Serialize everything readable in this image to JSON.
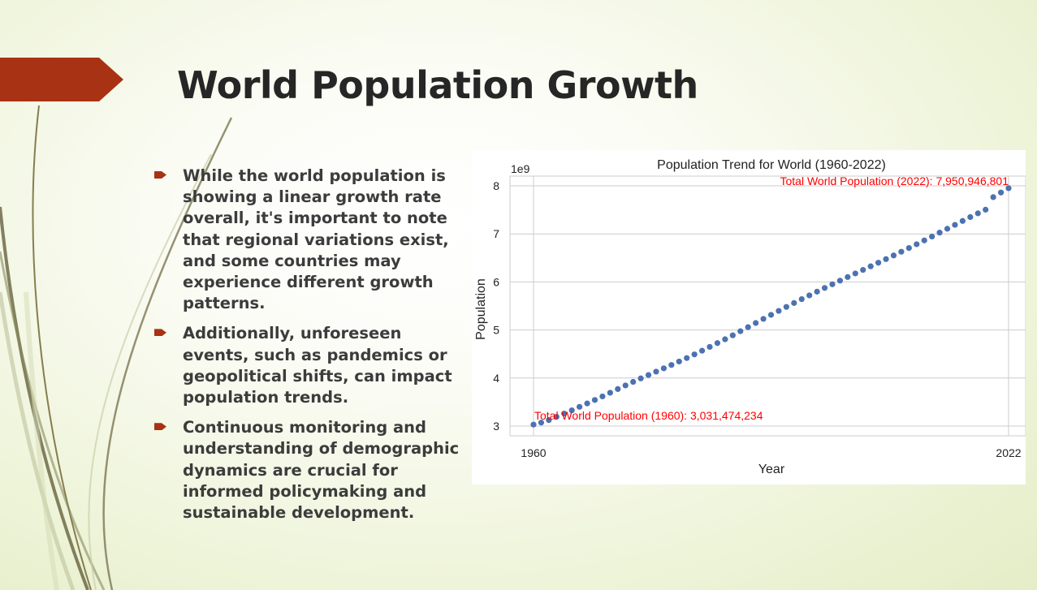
{
  "slide": {
    "title": "World Population Growth",
    "accent_color": "#a83214"
  },
  "bullets": [
    {
      "text": "While the world population is showing a linear growth rate overall, it's important to note that regional variations exist, and some countries may experience different growth patterns."
    },
    {
      "text": "Additionally, unforeseen events, such as pandemics or geopolitical shifts, can impact population trends."
    },
    {
      "text": "Continuous monitoring and understanding of demographic dynamics are crucial for informed policymaking and sustainable development."
    }
  ],
  "chart_data": {
    "type": "scatter",
    "title": "Population Trend for World (1960-2022)",
    "xlabel": "Year",
    "ylabel": "Population",
    "y_offset_label": "1e9",
    "x_ticks": [
      "1960",
      "2022"
    ],
    "y_ticks": [
      "3",
      "4",
      "5",
      "6",
      "7",
      "8"
    ],
    "xlim": [
      1960,
      2022
    ],
    "ylim": [
      3,
      8
    ],
    "grid": true,
    "marker_color": "#4c72b0",
    "annotation_color": "#ff0000",
    "x": [
      1960,
      1961,
      1962,
      1963,
      1964,
      1965,
      1966,
      1967,
      1968,
      1969,
      1970,
      1971,
      1972,
      1973,
      1974,
      1975,
      1976,
      1977,
      1978,
      1979,
      1980,
      1981,
      1982,
      1983,
      1984,
      1985,
      1986,
      1987,
      1988,
      1989,
      1990,
      1991,
      1992,
      1993,
      1994,
      1995,
      1996,
      1997,
      1998,
      1999,
      2000,
      2001,
      2002,
      2003,
      2004,
      2005,
      2006,
      2007,
      2008,
      2009,
      2010,
      2011,
      2012,
      2013,
      2014,
      2015,
      2016,
      2017,
      2018,
      2019,
      2020,
      2021,
      2022
    ],
    "y": [
      3.031,
      3.072,
      3.125,
      3.193,
      3.26,
      3.328,
      3.4,
      3.471,
      3.543,
      3.618,
      3.694,
      3.771,
      3.846,
      3.92,
      3.992,
      4.063,
      4.133,
      4.202,
      4.272,
      4.344,
      4.416,
      4.491,
      4.569,
      4.648,
      4.727,
      4.807,
      4.889,
      4.974,
      5.059,
      5.145,
      5.231,
      5.315,
      5.398,
      5.48,
      5.561,
      5.642,
      5.72,
      5.798,
      5.875,
      5.951,
      6.027,
      6.102,
      6.177,
      6.251,
      6.325,
      6.4,
      6.475,
      6.551,
      6.629,
      6.706,
      6.785,
      6.864,
      6.945,
      7.026,
      7.107,
      7.188,
      7.269,
      7.35,
      7.428,
      7.504,
      7.765,
      7.861,
      7.951
    ],
    "annotations": [
      {
        "text": "Total World Population (1960): 3,031,474,234",
        "x": 1960,
        "y": 3.031
      },
      {
        "text": "Total World Population (2022): 7,950,946,801",
        "x": 2022,
        "y": 7.951
      }
    ]
  }
}
